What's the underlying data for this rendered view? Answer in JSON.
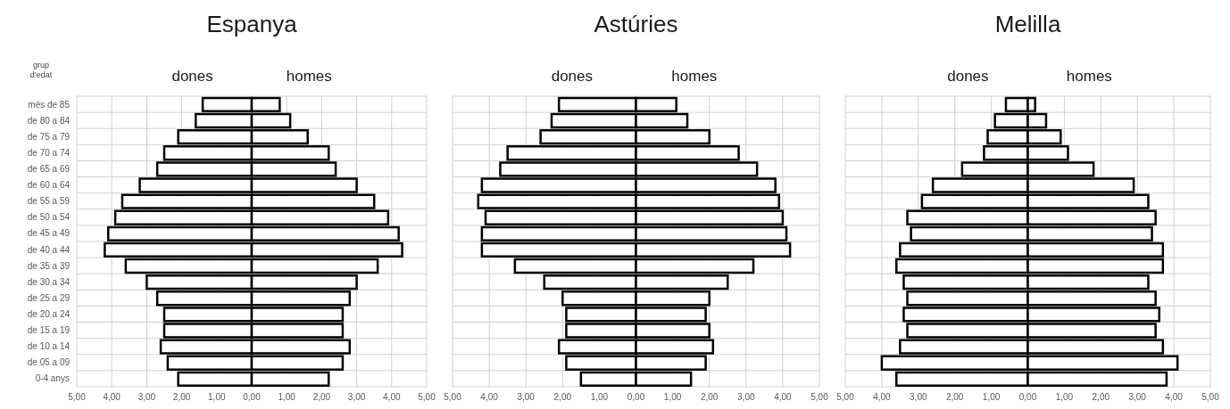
{
  "chart_data": [
    {
      "type": "bar",
      "orientation": "horizontal",
      "stacked": true,
      "title": "Espanya",
      "ylabel": "grup d’edat",
      "categories": [
        "més de 85",
        "de 80 a 84",
        "de 75 a 79",
        "de 70 a 74",
        "de 65 a 69",
        "de 60 a 64",
        "de 55 a 59",
        "de 50 a 54",
        "de 45 a 49",
        "de 40 a 44",
        "de 35 a 39",
        "de 30 a 34",
        "de 25 a 29",
        "de 20 a 24",
        "de 15 a 19",
        "de 10 a 14",
        "de 05 a 09",
        "0-4 anys"
      ],
      "series": [
        {
          "name": "dones",
          "color": "#ffffff",
          "values": [
            -1.4,
            -1.6,
            -2.1,
            -2.5,
            -2.7,
            -3.2,
            -3.7,
            -3.9,
            -4.1,
            -4.2,
            -3.6,
            -3.0,
            -2.7,
            -2.5,
            -2.5,
            -2.6,
            -2.4,
            -2.1
          ]
        },
        {
          "name": "homes",
          "color": "#ffffff",
          "values": [
            0.8,
            1.1,
            1.6,
            2.2,
            2.4,
            3.0,
            3.5,
            3.9,
            4.2,
            4.3,
            3.6,
            3.0,
            2.8,
            2.6,
            2.6,
            2.8,
            2.6,
            2.2
          ]
        }
      ],
      "xlim": [
        -5,
        5
      ],
      "xticks": [
        {
          "value": -5,
          "label": "5,00"
        },
        {
          "value": -4,
          "label": "4,00"
        },
        {
          "value": -3,
          "label": "3,00"
        },
        {
          "value": -2,
          "label": "2,00"
        },
        {
          "value": -1,
          "label": "1,00"
        },
        {
          "value": 0,
          "label": "0,00"
        },
        {
          "value": 1,
          "label": "1,00"
        },
        {
          "value": 2,
          "label": "2,00"
        },
        {
          "value": 3,
          "label": "3,00"
        },
        {
          "value": 4,
          "label": "4,00"
        },
        {
          "value": 5,
          "label": "5,00"
        }
      ],
      "grid": true
    },
    {
      "type": "bar",
      "orientation": "horizontal",
      "stacked": true,
      "title": "Astúries",
      "categories": [
        null,
        null,
        null,
        null,
        null,
        null,
        null,
        null,
        null,
        null,
        null,
        null,
        null,
        null,
        null,
        null,
        null,
        null
      ],
      "series": [
        {
          "name": "dones",
          "color": "#ffffff",
          "values": [
            -2.1,
            -2.3,
            -2.6,
            -3.5,
            -3.7,
            -4.2,
            -4.3,
            -4.1,
            -4.2,
            -4.2,
            -3.3,
            -2.5,
            -2.0,
            -1.9,
            -1.9,
            -2.1,
            -1.9,
            -1.5
          ]
        },
        {
          "name": "homes",
          "color": "#ffffff",
          "values": [
            1.1,
            1.4,
            2.0,
            2.8,
            3.3,
            3.8,
            3.9,
            4.0,
            4.1,
            4.2,
            3.2,
            2.5,
            2.0,
            1.9,
            2.0,
            2.1,
            1.9,
            1.5
          ]
        }
      ],
      "xlim": [
        -5,
        5
      ],
      "xticks": [
        {
          "value": -5,
          "label": "5,00"
        },
        {
          "value": -4,
          "label": "4,00"
        },
        {
          "value": -3,
          "label": "3,00"
        },
        {
          "value": -2,
          "label": "2,00"
        },
        {
          "value": -1,
          "label": "1,00"
        },
        {
          "value": 0,
          "label": "0,00"
        },
        {
          "value": 1,
          "label": "1,00"
        },
        {
          "value": 2,
          "label": "2,00"
        },
        {
          "value": 3,
          "label": "3,00"
        },
        {
          "value": 4,
          "label": "4,00"
        },
        {
          "value": 5,
          "label": "5,00"
        }
      ],
      "grid": true,
      "tick_labels": "x"
    },
    {
      "type": "bar",
      "orientation": "horizontal",
      "stacked": true,
      "title": "Melilla",
      "categories": [
        null,
        null,
        null,
        null,
        null,
        null,
        null,
        null,
        null,
        null,
        null,
        null,
        null,
        null,
        null,
        null,
        null,
        null
      ],
      "series": [
        {
          "name": "dones",
          "color": "#ffffff",
          "values": [
            -0.6,
            -0.9,
            -1.1,
            -1.2,
            -1.8,
            -2.6,
            -2.9,
            -3.3,
            -3.2,
            -3.5,
            -3.6,
            -3.4,
            -3.3,
            -3.4,
            -3.3,
            -3.5,
            -4.0,
            -3.6
          ]
        },
        {
          "name": "homes",
          "color": "#ffffff",
          "values": [
            0.2,
            0.5,
            0.9,
            1.1,
            1.8,
            2.9,
            3.3,
            3.5,
            3.4,
            3.7,
            3.7,
            3.3,
            3.5,
            3.6,
            3.5,
            3.7,
            4.1,
            3.8
          ]
        }
      ],
      "xlim": [
        -5,
        5
      ],
      "xticks": [
        {
          "value": -5,
          "label": "5,00"
        },
        {
          "value": -4,
          "label": "4,00"
        },
        {
          "value": -3,
          "label": "3,00"
        },
        {
          "value": -2,
          "label": "2,00"
        },
        {
          "value": -1,
          "label": "1,00"
        },
        {
          "value": 0,
          "label": "0,00"
        },
        {
          "value": 1,
          "label": "1,00"
        },
        {
          "value": 2,
          "label": "2,00"
        },
        {
          "value": 3,
          "label": "3,00"
        },
        {
          "value": 4,
          "label": "4,00"
        },
        {
          "value": 5,
          "label": "5,00"
        }
      ],
      "grid": true,
      "tick_labels": "x"
    }
  ]
}
